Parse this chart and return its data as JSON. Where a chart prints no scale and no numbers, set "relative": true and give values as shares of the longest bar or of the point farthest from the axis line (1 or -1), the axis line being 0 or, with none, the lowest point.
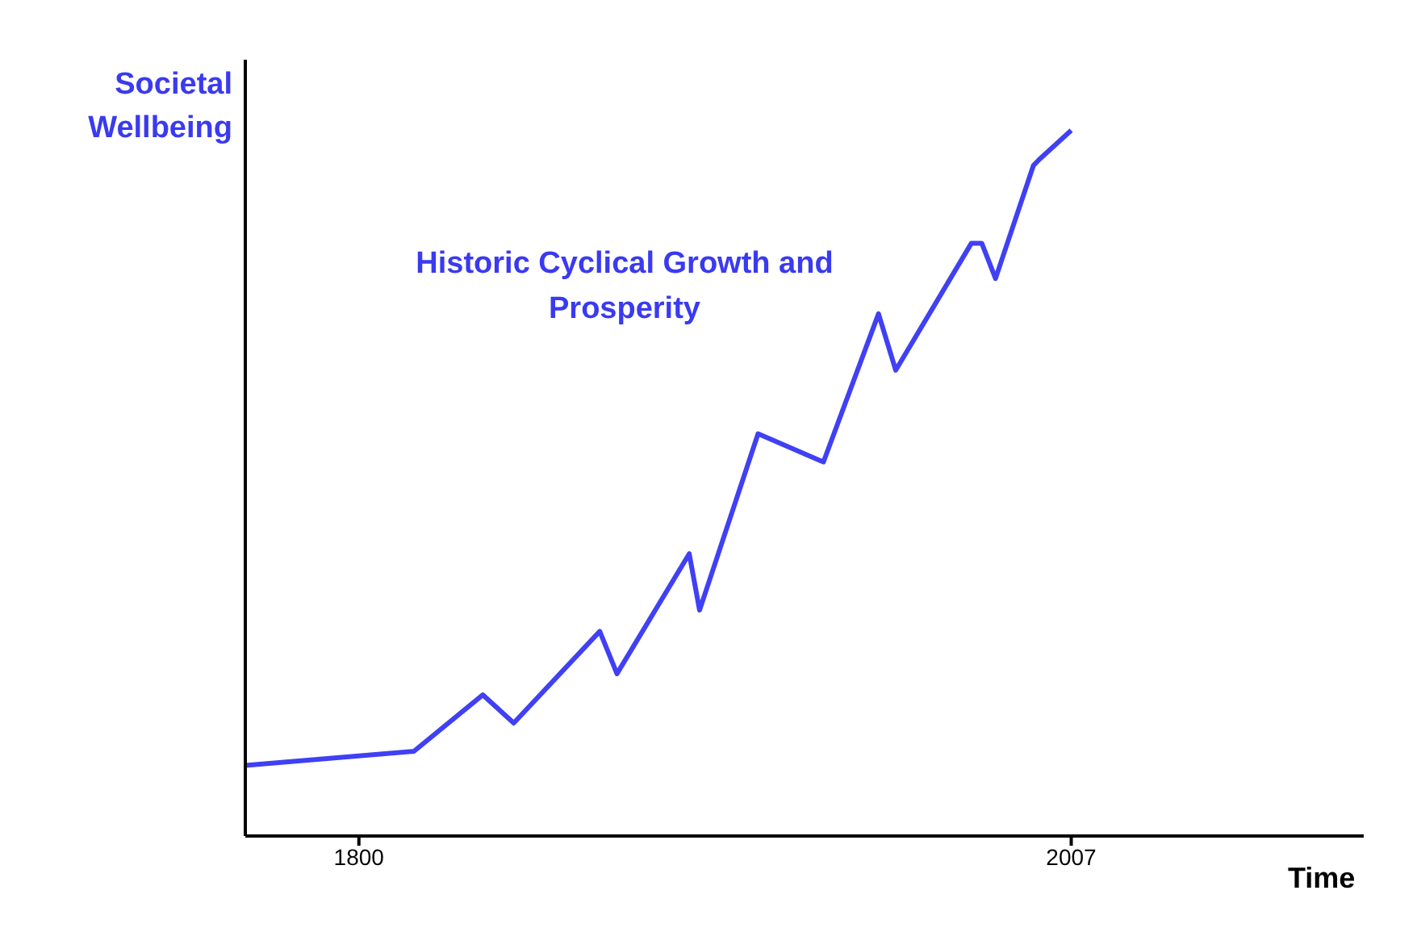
{
  "chart_data": {
    "type": "line",
    "relative": true,
    "ylabel": "Societal Wellbeing",
    "xlabel": "Time",
    "annotations": [
      "Historic Cyclical Growth and Prosperity"
    ],
    "xlim": [
      1767,
      2092
    ],
    "xticks": [
      1800,
      2007
    ],
    "marker": "none",
    "line_style": "solid",
    "series": [
      {
        "color": "#4040f4",
        "x": [
          1767,
          1816,
          1836,
          1845,
          1870,
          1875,
          1896,
          1899,
          1916,
          1935,
          1951,
          1956,
          1978,
          1981,
          1985,
          1996,
          1998,
          2007
        ],
        "values": [
          0.1,
          0.12,
          0.2,
          0.16,
          0.29,
          0.23,
          0.4,
          0.32,
          0.57,
          0.53,
          0.74,
          0.66,
          0.84,
          0.84,
          0.79,
          0.95,
          0.96,
          1
        ]
      }
    ]
  }
}
